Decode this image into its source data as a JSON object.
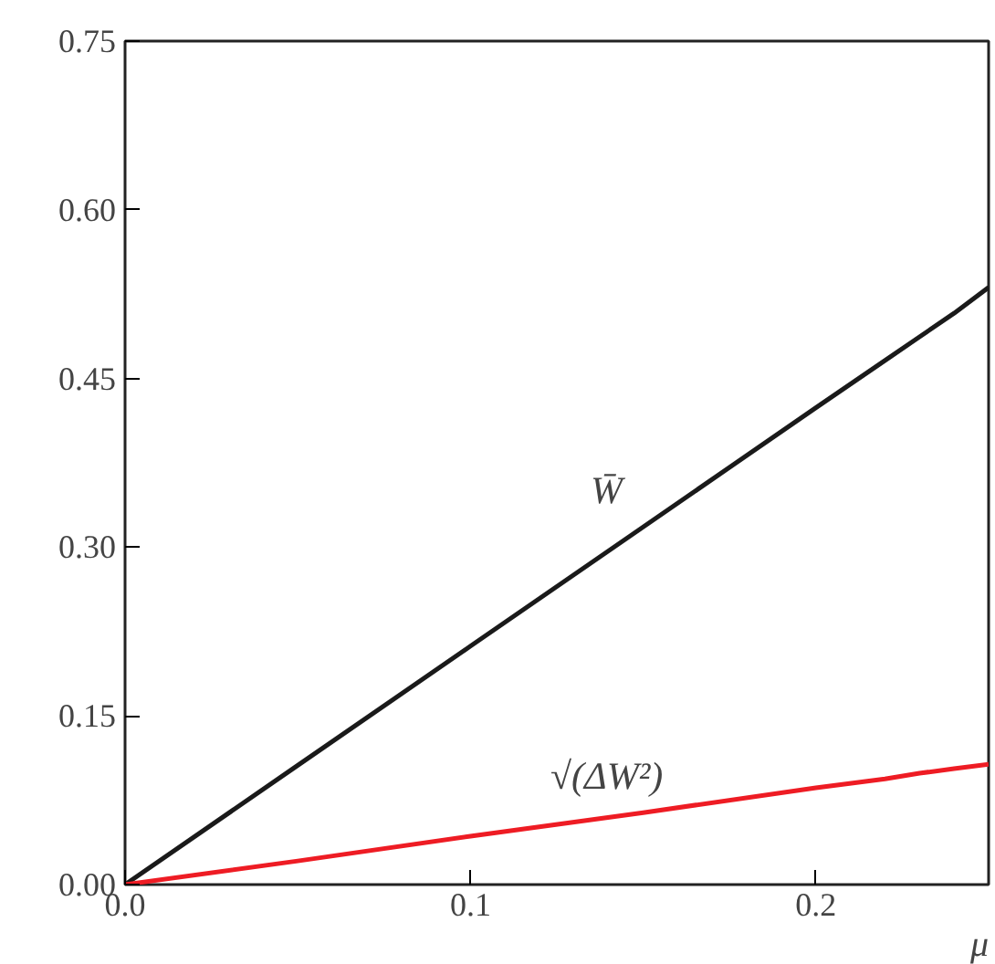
{
  "chart_data": {
    "type": "line",
    "xlabel": "μ",
    "x": [
      0,
      0.05,
      0.1,
      0.15,
      0.2,
      0.22,
      0.23,
      0.24,
      0.25
    ],
    "series": [
      {
        "name": "W̄",
        "color": "#1a1a1a",
        "values": [
          0,
          0.106,
          0.212,
          0.318,
          0.424,
          0.466,
          0.487,
          0.508,
          0.531
        ]
      },
      {
        "name": "√(ΔW²)",
        "color": "#ee1c24",
        "values": [
          0,
          0.021,
          0.043,
          0.064,
          0.086,
          0.094,
          0.099,
          0.103,
          0.107
        ]
      }
    ],
    "xlim": [
      0,
      0.25
    ],
    "ylim": [
      0,
      0.75
    ],
    "xticks": [
      {
        "value": 0,
        "label": "0.0"
      },
      {
        "value": 0.1,
        "label": "0.1"
      },
      {
        "value": 0.2,
        "label": "0.2"
      }
    ],
    "yticks": [
      {
        "value": 0,
        "label": "0.00"
      },
      {
        "value": 0.15,
        "label": "0.15"
      },
      {
        "value": 0.3,
        "label": "0.30"
      },
      {
        "value": 0.45,
        "label": "0.45"
      },
      {
        "value": 0.6,
        "label": "0.60"
      },
      {
        "value": 0.75,
        "label": "0.75"
      }
    ],
    "grid": false,
    "legend": false,
    "marker": "none",
    "line_style": "solid"
  }
}
